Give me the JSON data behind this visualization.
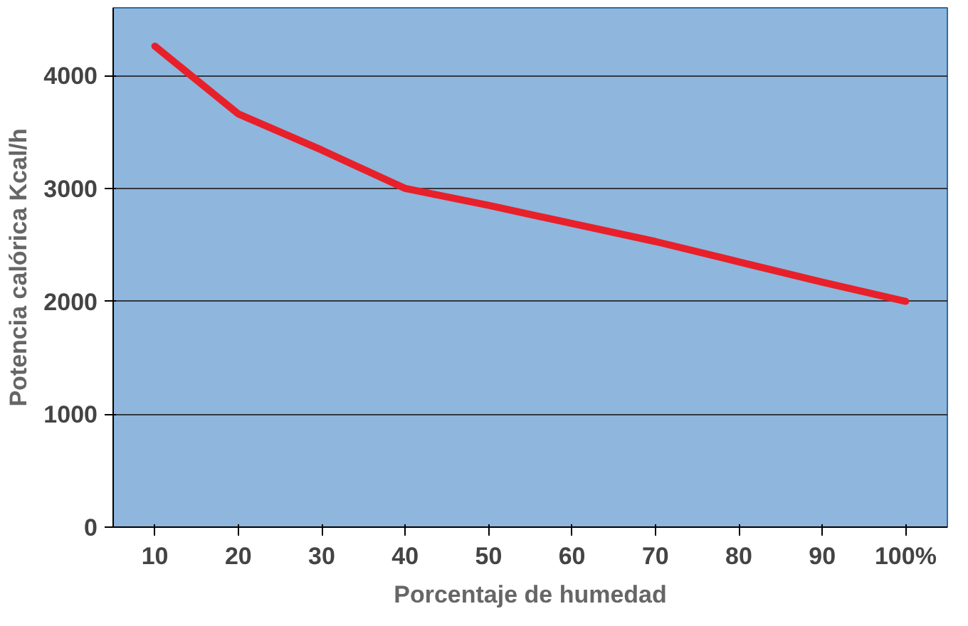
{
  "chart_data": {
    "type": "line",
    "xlabel": "Porcentaje de humedad",
    "ylabel": "Potencia calórica Kcal/h",
    "categories": [
      "10",
      "20",
      "30",
      "40",
      "50",
      "60",
      "70",
      "80",
      "90",
      "100%"
    ],
    "series": [
      {
        "color": "#e8202a",
        "values": [
          4260,
          3660,
          3340,
          3000,
          2850,
          2690,
          2530,
          2350,
          2170,
          2000
        ]
      }
    ],
    "ylim": [
      0,
      4600
    ],
    "yticks": [
      0,
      1000,
      2000,
      3000,
      4000
    ],
    "grid": "y",
    "marker": "none",
    "line_style": "solid"
  }
}
